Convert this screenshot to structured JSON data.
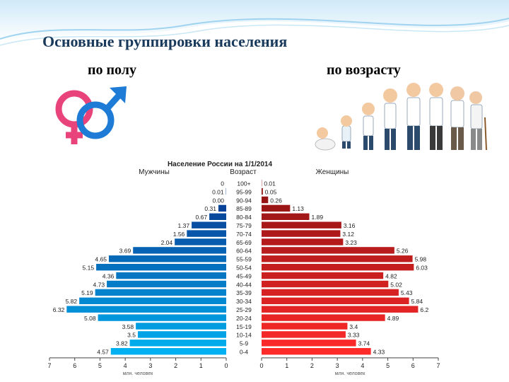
{
  "slide": {
    "title": "Основные группировки населения",
    "subtitle_sex": "по полу",
    "subtitle_age": "по возрасту"
  },
  "illustrations": {
    "sex_icon": "female-male-symbols-icon",
    "age_icon": "life-stages-people-icon"
  },
  "chart_data": {
    "type": "bar",
    "orientation": "horizontal-butterfly",
    "title": "Население России на 1/1/2014",
    "left_label": "Мужчины",
    "center_label": "Возраст",
    "right_label": "Женщины",
    "xlabel_left": "млн. человек",
    "xlabel_right": "млн. человек",
    "xlim": [
      0,
      7
    ],
    "x_ticks": [
      "0",
      "1",
      "2",
      "3",
      "4",
      "5",
      "6",
      "7"
    ],
    "categories": [
      "100+",
      "95-99",
      "90-94",
      "85-89",
      "80-84",
      "75-79",
      "70-74",
      "65-69",
      "60-64",
      "55-59",
      "50-54",
      "45-49",
      "40-44",
      "35-39",
      "30-34",
      "25-29",
      "20-24",
      "15-19",
      "10-14",
      "5-9",
      "0-4"
    ],
    "series": [
      {
        "name": "Мужчины",
        "values": [
          0,
          0.01,
          0.0,
          0.31,
          0.67,
          1.37,
          1.56,
          2.04,
          3.69,
          4.65,
          5.15,
          4.36,
          4.73,
          5.19,
          5.82,
          6.32,
          5.08,
          3.58,
          3.5,
          3.82,
          4.57
        ],
        "labels": [
          "0",
          "0.01",
          "0.00",
          "0.31",
          "0.67",
          "1.37",
          "1.56",
          "2.04",
          "3.69",
          "4.65",
          "5.15",
          "4.36",
          "4.73",
          "5.19",
          "5.82",
          "6.32",
          "5.08",
          "3.58",
          "3.5",
          "3.82",
          "4.57"
        ]
      },
      {
        "name": "Женщины",
        "values": [
          0.01,
          0.05,
          0.26,
          1.13,
          1.89,
          3.16,
          3.12,
          3.23,
          5.26,
          5.98,
          6.03,
          4.82,
          5.02,
          5.43,
          5.84,
          6.2,
          4.89,
          3.4,
          3.33,
          3.74,
          4.33
        ],
        "labels": [
          "0.01",
          "0.05",
          "0.26",
          "1.13",
          "1.89",
          "3.16",
          "3.12",
          "3.23",
          "5.26",
          "5.98",
          "6.03",
          "4.82",
          "5.02",
          "5.43",
          "5.84",
          "6.2",
          "4.89",
          "3.4",
          "3.33",
          "3.74",
          "4.33"
        ]
      }
    ],
    "colors": {
      "male_young": "#00b0f0",
      "male_old": "#0a2f8a",
      "female_young": "#ff2a2a",
      "female_old": "#8b1212"
    }
  }
}
